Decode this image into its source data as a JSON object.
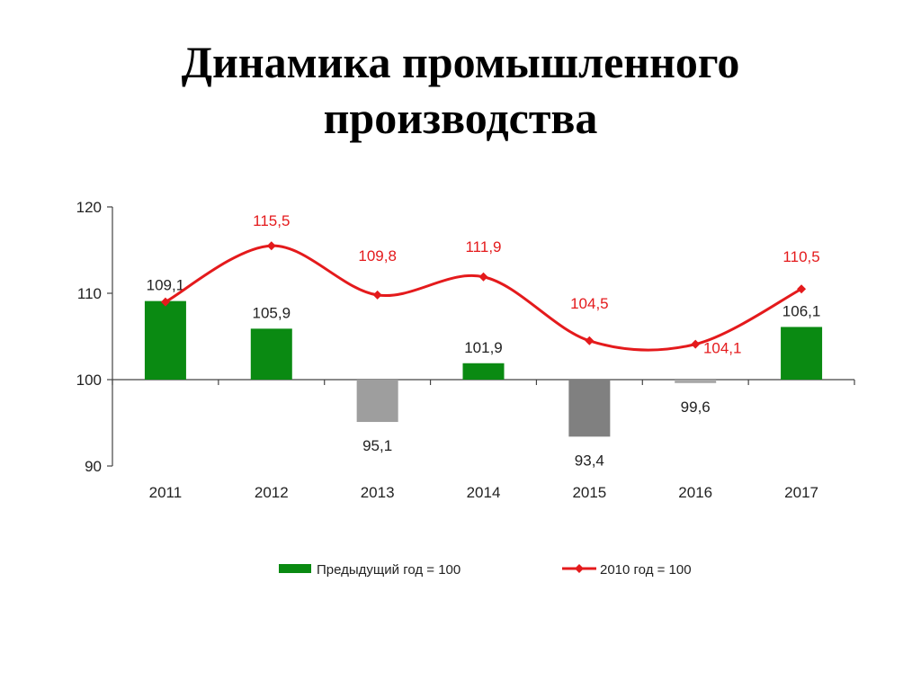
{
  "title": {
    "line1": "Динамика промышленного",
    "line2": "производства"
  },
  "chart_data": {
    "type": "bar+line",
    "categories": [
      "2011",
      "2012",
      "2013",
      "2014",
      "2015",
      "2016",
      "2017"
    ],
    "ylim": [
      90,
      120
    ],
    "yticks": [
      90,
      100,
      110,
      120
    ],
    "baseline": 100,
    "grid": false,
    "legend_position": "bottom",
    "series": [
      {
        "name": "Предыдущий год = 100",
        "kind": "bar",
        "values": [
          109.1,
          105.9,
          95.1,
          101.9,
          93.4,
          99.6,
          106.1
        ],
        "labels": [
          "109,1",
          "105,9",
          "95,1",
          "101,9",
          "93,4",
          "99,6",
          "106,1"
        ],
        "colors": [
          "#0a8a12",
          "#0a8a12",
          "#9e9e9e",
          "#0a8a12",
          "#808080",
          "#a8a8a8",
          "#0a8a12"
        ]
      },
      {
        "name": "2010 год = 100",
        "kind": "line",
        "color": "#e41a1c",
        "values": [
          109.0,
          115.5,
          109.8,
          111.9,
          104.5,
          104.1,
          110.5
        ],
        "labels": [
          "",
          "115,5",
          "109,8",
          "111,9",
          "104,5",
          "104,1",
          "110,5"
        ]
      }
    ]
  }
}
